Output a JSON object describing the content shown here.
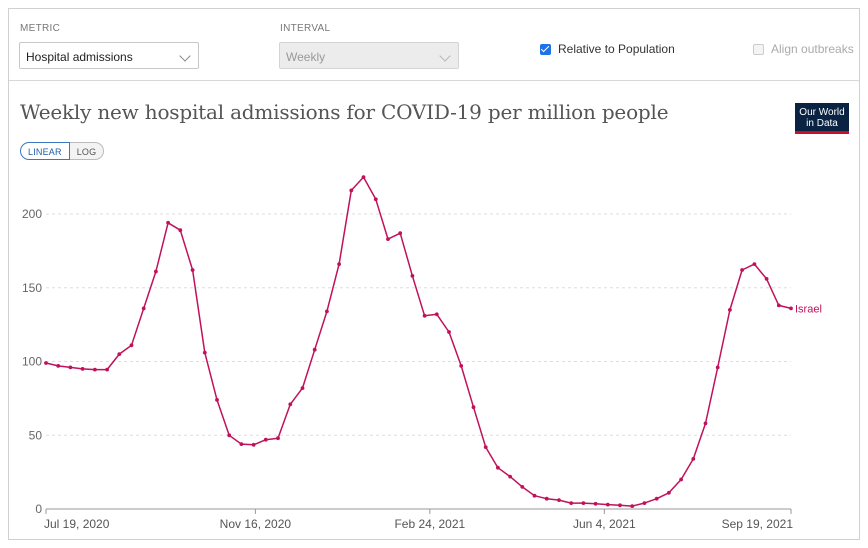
{
  "controls": {
    "metric_label": "METRIC",
    "metric_value": "Hospital admissions",
    "interval_label": "INTERVAL",
    "interval_value": "Weekly",
    "relative_label": "Relative to Population",
    "align_label": "Align outbreaks"
  },
  "logo": {
    "line1": "Our World",
    "line2": "in Data"
  },
  "scale_toggle": {
    "linear": "LINEAR",
    "log": "LOG"
  },
  "colors": {
    "series": "#c0125b",
    "grid": "#dddddd",
    "logo_bg": "#0a2342",
    "logo_bar": "#c8102e",
    "checkbox": "#1a73e8"
  },
  "chart_data": {
    "type": "line",
    "title": "Weekly new hospital admissions for COVID-19 per million people",
    "xlabel": "",
    "ylabel": "",
    "ylim": [
      0,
      220
    ],
    "yticks": [
      0,
      50,
      100,
      150,
      200
    ],
    "xlim": [
      "2020-07-19",
      "2021-09-19"
    ],
    "xticks": [
      {
        "date": "2020-07-19",
        "label": "Jul 19, 2020"
      },
      {
        "date": "2020-11-16",
        "label": "Nov 16, 2020"
      },
      {
        "date": "2021-02-24",
        "label": "Feb 24, 2021"
      },
      {
        "date": "2021-06-04",
        "label": "Jun 4, 2021"
      },
      {
        "date": "2021-09-19",
        "label": "Sep 19, 2021"
      }
    ],
    "grid": "horizontal dashed",
    "series": [
      {
        "name": "Israel",
        "start": "2020-07-19",
        "step_days": 7,
        "values": [
          99,
          97,
          96,
          95,
          94.5,
          94.5,
          105,
          111,
          136,
          161,
          194,
          189,
          162,
          106,
          74,
          50,
          44,
          43.5,
          47,
          48,
          71,
          82,
          108,
          134,
          166,
          216,
          225,
          210,
          183,
          187,
          158,
          131,
          132,
          120,
          97,
          69,
          42,
          28,
          22,
          15,
          9,
          7,
          6,
          4,
          4,
          3.5,
          3,
          2.5,
          2,
          4,
          7,
          11,
          20,
          34,
          58,
          96,
          135,
          162,
          166,
          156,
          138,
          136
        ]
      }
    ]
  }
}
